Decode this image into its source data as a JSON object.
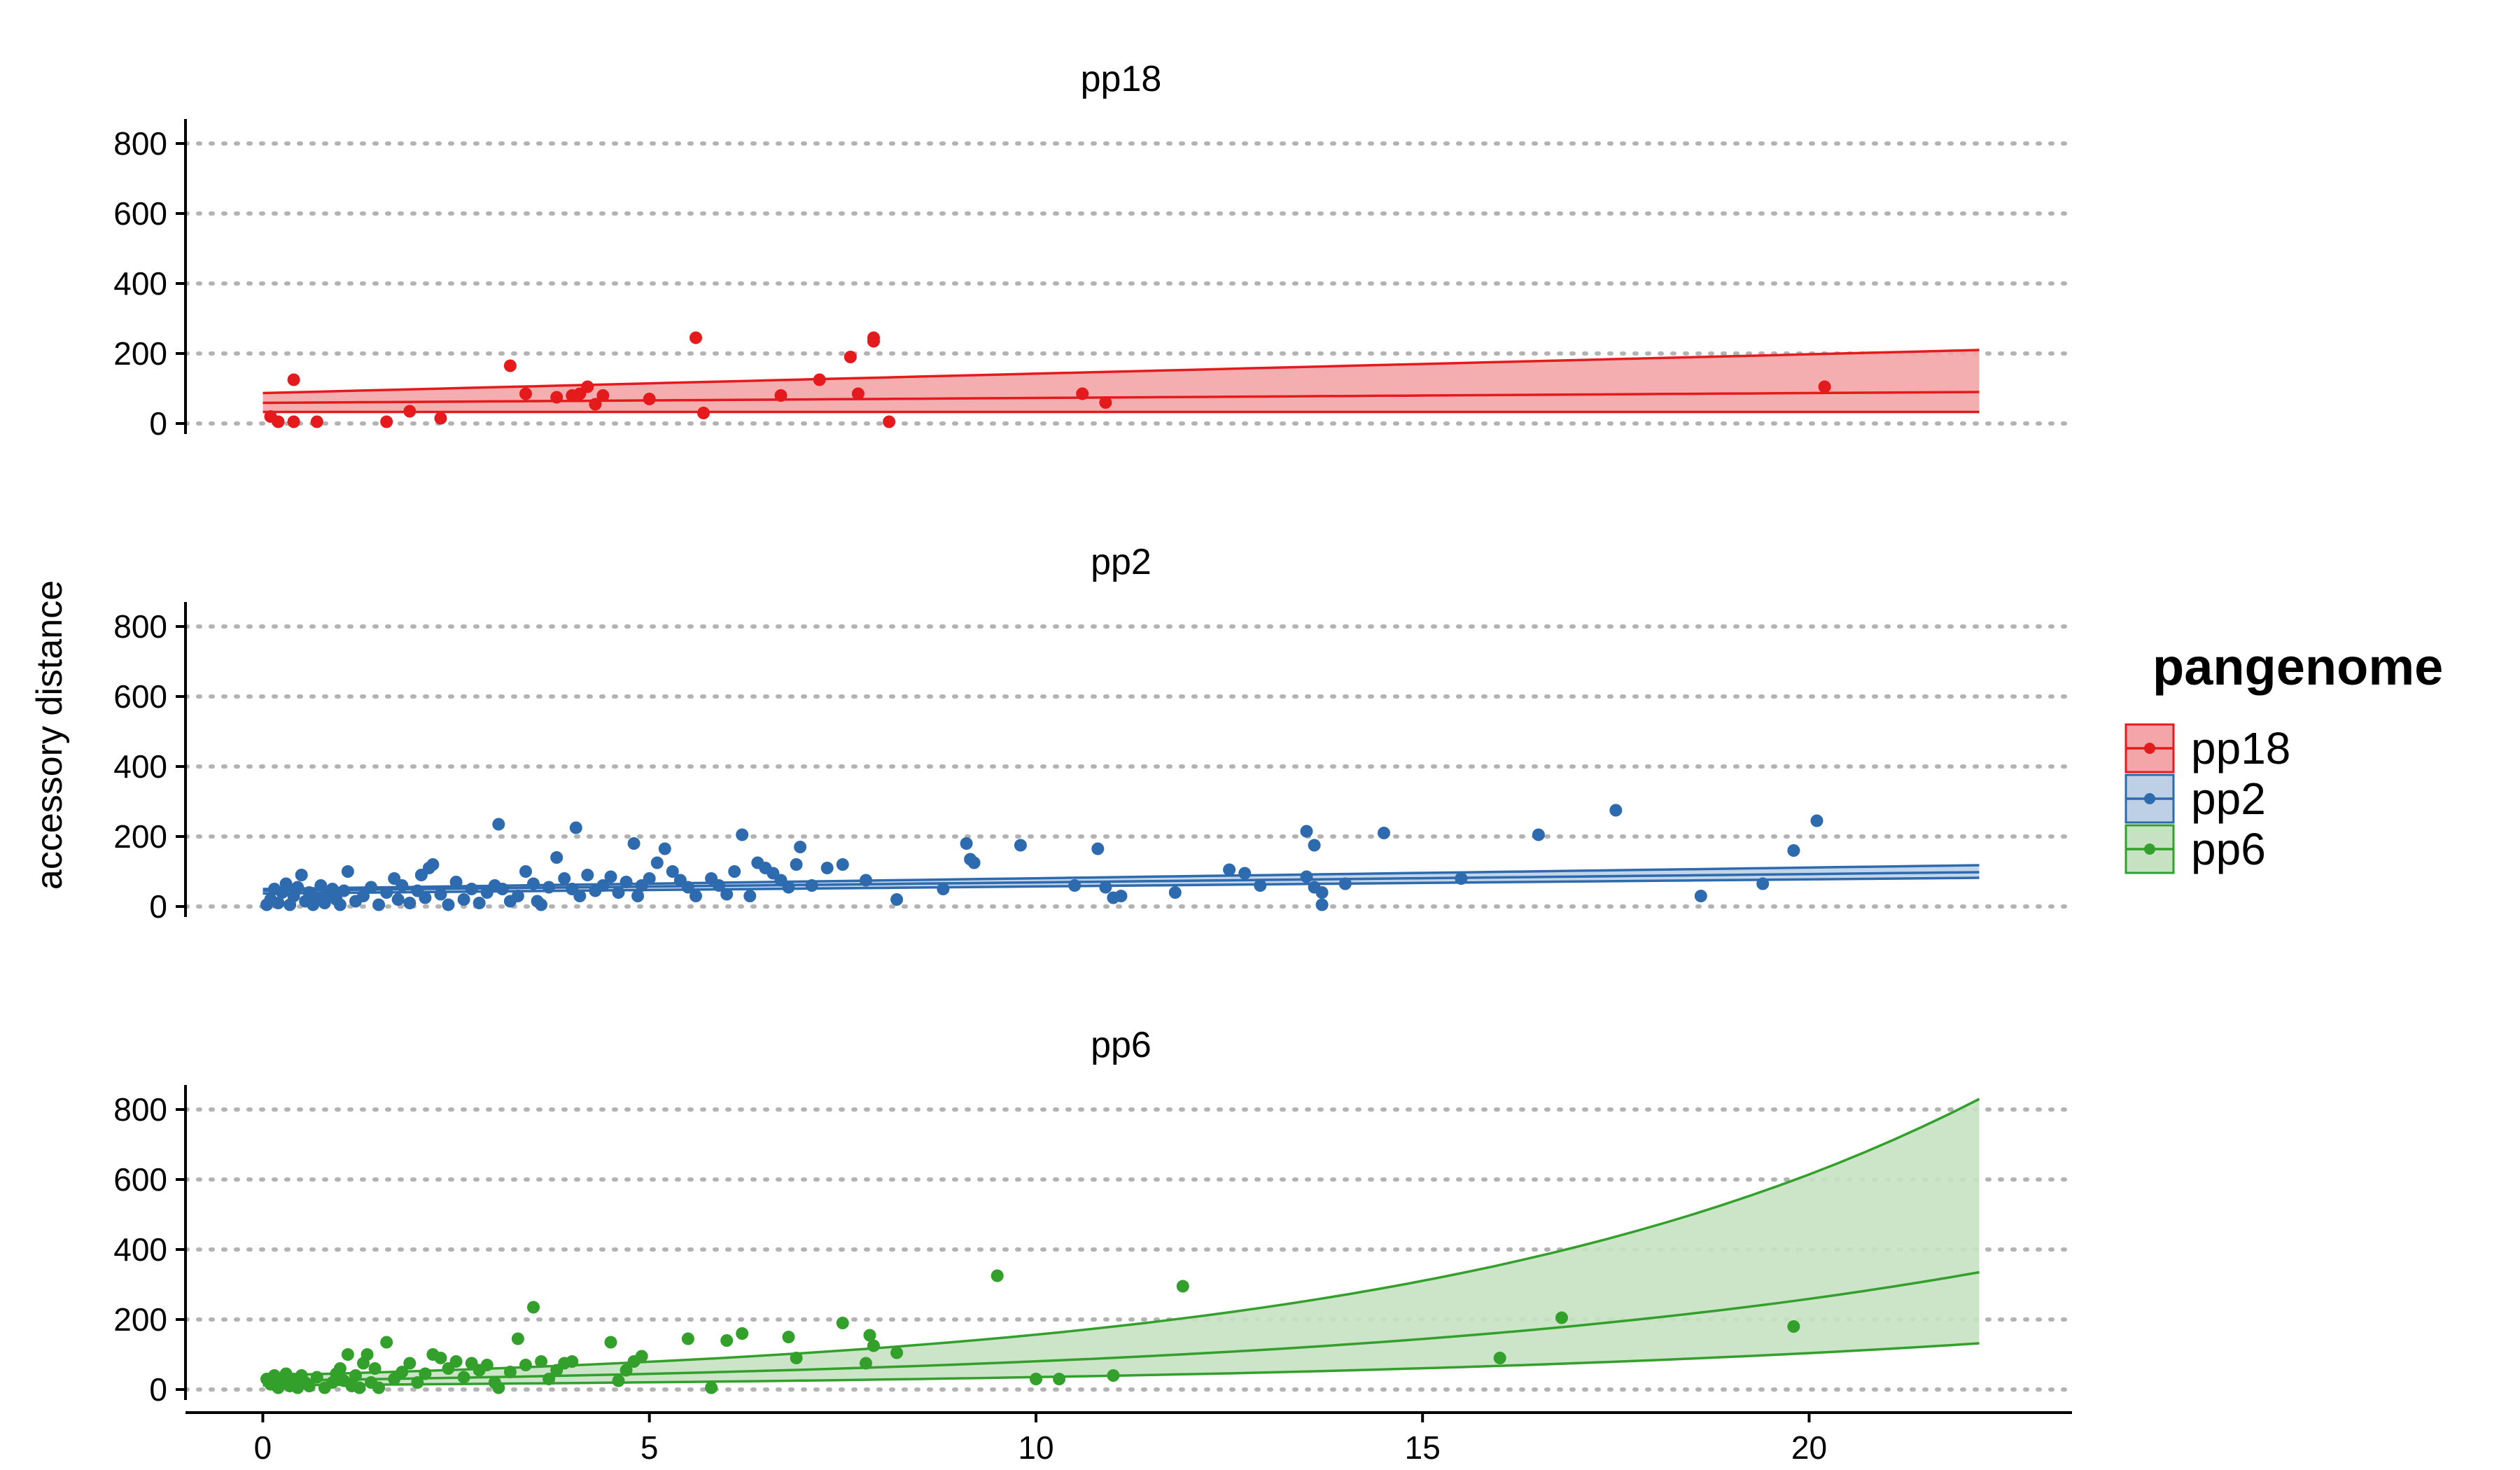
{
  "chart_data": {
    "type": "scatter",
    "title": "",
    "xlabel": "",
    "ylabel": "accessory distance",
    "xlim": [
      -1,
      23.4
    ],
    "x_ticks": [
      0,
      5,
      10,
      15,
      20
    ],
    "y_ticks": [
      0,
      200,
      400,
      600,
      800
    ],
    "ylim": [
      -30,
      870
    ],
    "grid": "horizontal dotted",
    "legend": {
      "title": "pangenome",
      "position": "right"
    },
    "panels": [
      {
        "name": "pp18",
        "color": "#E41A1C",
        "fill": "#F4A5A7",
        "fit": {
          "x": [
            0,
            22.2
          ],
          "mid": [
            59,
            90
          ],
          "lo": [
            33,
            33
          ],
          "hi": [
            87,
            210
          ]
        },
        "points": [
          [
            0.1,
            20
          ],
          [
            0.2,
            5
          ],
          [
            0.4,
            125
          ],
          [
            0.4,
            5
          ],
          [
            0.7,
            5
          ],
          [
            1.6,
            5
          ],
          [
            1.9,
            35
          ],
          [
            2.3,
            15
          ],
          [
            3.2,
            165
          ],
          [
            3.4,
            85
          ],
          [
            3.8,
            75
          ],
          [
            4.0,
            80
          ],
          [
            4.1,
            85
          ],
          [
            4.2,
            105
          ],
          [
            4.3,
            55
          ],
          [
            4.4,
            80
          ],
          [
            5.0,
            70
          ],
          [
            5.6,
            245
          ],
          [
            5.7,
            30
          ],
          [
            6.7,
            80
          ],
          [
            7.2,
            125
          ],
          [
            7.6,
            190
          ],
          [
            7.7,
            85
          ],
          [
            7.9,
            235
          ],
          [
            7.9,
            245
          ],
          [
            8.1,
            5
          ],
          [
            10.6,
            85
          ],
          [
            10.9,
            60
          ],
          [
            20.2,
            105
          ]
        ]
      },
      {
        "name": "pp2",
        "color": "#2E6AAE",
        "fill": "#BDD0E6",
        "fit": {
          "x": [
            0,
            22.2
          ],
          "mid": [
            45,
            98
          ],
          "lo": [
            37,
            82
          ],
          "hi": [
            50,
            118
          ]
        },
        "points": [
          [
            0.05,
            5
          ],
          [
            0.1,
            20
          ],
          [
            0.15,
            50
          ],
          [
            0.2,
            10
          ],
          [
            0.25,
            40
          ],
          [
            0.3,
            65
          ],
          [
            0.35,
            5
          ],
          [
            0.4,
            30
          ],
          [
            0.45,
            55
          ],
          [
            0.5,
            90
          ],
          [
            0.55,
            15
          ],
          [
            0.6,
            40
          ],
          [
            0.65,
            5
          ],
          [
            0.7,
            25
          ],
          [
            0.75,
            60
          ],
          [
            0.8,
            10
          ],
          [
            0.85,
            35
          ],
          [
            0.9,
            50
          ],
          [
            0.95,
            20
          ],
          [
            1.0,
            5
          ],
          [
            1.05,
            45
          ],
          [
            1.1,
            100
          ],
          [
            1.2,
            15
          ],
          [
            1.3,
            30
          ],
          [
            1.4,
            55
          ],
          [
            1.5,
            5
          ],
          [
            1.6,
            40
          ],
          [
            1.7,
            80
          ],
          [
            1.75,
            20
          ],
          [
            1.8,
            60
          ],
          [
            1.9,
            10
          ],
          [
            2.0,
            45
          ],
          [
            2.05,
            90
          ],
          [
            2.1,
            25
          ],
          [
            2.15,
            110
          ],
          [
            2.2,
            120
          ],
          [
            2.3,
            35
          ],
          [
            2.4,
            5
          ],
          [
            2.5,
            70
          ],
          [
            2.6,
            20
          ],
          [
            2.7,
            50
          ],
          [
            2.8,
            10
          ],
          [
            2.9,
            40
          ],
          [
            3.0,
            60
          ],
          [
            3.05,
            235
          ],
          [
            3.1,
            50
          ],
          [
            3.2,
            15
          ],
          [
            3.3,
            30
          ],
          [
            3.4,
            100
          ],
          [
            3.5,
            65
          ],
          [
            3.55,
            15
          ],
          [
            3.6,
            5
          ],
          [
            3.7,
            55
          ],
          [
            3.8,
            140
          ],
          [
            3.9,
            80
          ],
          [
            4.0,
            50
          ],
          [
            4.05,
            225
          ],
          [
            4.1,
            30
          ],
          [
            4.2,
            90
          ],
          [
            4.3,
            45
          ],
          [
            4.4,
            60
          ],
          [
            4.5,
            85
          ],
          [
            4.6,
            40
          ],
          [
            4.7,
            70
          ],
          [
            4.8,
            180
          ],
          [
            4.85,
            30
          ],
          [
            4.9,
            60
          ],
          [
            5.0,
            80
          ],
          [
            5.1,
            125
          ],
          [
            5.2,
            165
          ],
          [
            5.3,
            100
          ],
          [
            5.4,
            75
          ],
          [
            5.5,
            55
          ],
          [
            5.6,
            30
          ],
          [
            5.8,
            80
          ],
          [
            5.9,
            60
          ],
          [
            6.0,
            35
          ],
          [
            6.1,
            100
          ],
          [
            6.2,
            205
          ],
          [
            6.3,
            30
          ],
          [
            6.4,
            125
          ],
          [
            6.5,
            110
          ],
          [
            6.6,
            95
          ],
          [
            6.7,
            75
          ],
          [
            6.8,
            55
          ],
          [
            6.9,
            120
          ],
          [
            6.95,
            170
          ],
          [
            7.1,
            60
          ],
          [
            7.3,
            110
          ],
          [
            7.5,
            120
          ],
          [
            7.8,
            75
          ],
          [
            8.2,
            20
          ],
          [
            8.8,
            50
          ],
          [
            9.1,
            180
          ],
          [
            9.15,
            135
          ],
          [
            9.2,
            125
          ],
          [
            9.8,
            175
          ],
          [
            10.5,
            60
          ],
          [
            10.8,
            165
          ],
          [
            10.9,
            55
          ],
          [
            11.0,
            25
          ],
          [
            11.1,
            30
          ],
          [
            11.8,
            40
          ],
          [
            12.5,
            105
          ],
          [
            12.7,
            95
          ],
          [
            12.9,
            60
          ],
          [
            13.5,
            215
          ],
          [
            13.5,
            85
          ],
          [
            13.6,
            175
          ],
          [
            13.6,
            55
          ],
          [
            13.7,
            40
          ],
          [
            13.7,
            5
          ],
          [
            14.0,
            65
          ],
          [
            14.5,
            210
          ],
          [
            15.5,
            80
          ],
          [
            16.5,
            205
          ],
          [
            17.5,
            275
          ],
          [
            18.6,
            30
          ],
          [
            19.4,
            65
          ],
          [
            19.8,
            160
          ],
          [
            20.1,
            245
          ]
        ]
      },
      {
        "name": "pp6",
        "color": "#33A02C",
        "fill": "#C6E2C3",
        "fit": {
          "x": [
            0,
            22.2
          ],
          "mid": [
            25,
            335
          ],
          "lo": [
            12,
            132
          ],
          "hi": [
            40,
            830
          ],
          "curve": "exponential"
        },
        "points": [
          [
            0.05,
            30
          ],
          [
            0.1,
            15
          ],
          [
            0.15,
            40
          ],
          [
            0.2,
            5
          ],
          [
            0.25,
            25
          ],
          [
            0.3,
            45
          ],
          [
            0.35,
            10
          ],
          [
            0.4,
            30
          ],
          [
            0.45,
            5
          ],
          [
            0.5,
            40
          ],
          [
            0.55,
            20
          ],
          [
            0.6,
            10
          ],
          [
            0.7,
            35
          ],
          [
            0.8,
            5
          ],
          [
            0.9,
            20
          ],
          [
            0.95,
            45
          ],
          [
            1.0,
            60
          ],
          [
            1.05,
            25
          ],
          [
            1.1,
            100
          ],
          [
            1.15,
            10
          ],
          [
            1.2,
            40
          ],
          [
            1.25,
            5
          ],
          [
            1.3,
            75
          ],
          [
            1.35,
            100
          ],
          [
            1.4,
            20
          ],
          [
            1.45,
            60
          ],
          [
            1.5,
            5
          ],
          [
            1.6,
            135
          ],
          [
            1.7,
            30
          ],
          [
            1.8,
            50
          ],
          [
            1.9,
            75
          ],
          [
            2.0,
            20
          ],
          [
            2.1,
            45
          ],
          [
            2.2,
            100
          ],
          [
            2.3,
            90
          ],
          [
            2.4,
            60
          ],
          [
            2.5,
            80
          ],
          [
            2.6,
            35
          ],
          [
            2.7,
            75
          ],
          [
            2.8,
            55
          ],
          [
            2.9,
            70
          ],
          [
            3.0,
            20
          ],
          [
            3.05,
            5
          ],
          [
            3.2,
            50
          ],
          [
            3.3,
            145
          ],
          [
            3.4,
            70
          ],
          [
            3.5,
            235
          ],
          [
            3.6,
            80
          ],
          [
            3.7,
            30
          ],
          [
            3.8,
            55
          ],
          [
            3.9,
            75
          ],
          [
            4.0,
            80
          ],
          [
            4.5,
            135
          ],
          [
            4.6,
            25
          ],
          [
            4.7,
            55
          ],
          [
            4.8,
            80
          ],
          [
            4.9,
            95
          ],
          [
            5.5,
            145
          ],
          [
            5.8,
            5
          ],
          [
            6.0,
            140
          ],
          [
            6.2,
            160
          ],
          [
            6.8,
            150
          ],
          [
            6.9,
            90
          ],
          [
            7.5,
            190
          ],
          [
            7.8,
            75
          ],
          [
            7.85,
            155
          ],
          [
            7.9,
            125
          ],
          [
            8.2,
            105
          ],
          [
            9.5,
            325
          ],
          [
            10.0,
            30
          ],
          [
            10.3,
            30
          ],
          [
            11.0,
            40
          ],
          [
            11.9,
            295
          ],
          [
            16.0,
            90
          ],
          [
            16.8,
            205
          ],
          [
            19.8,
            180
          ]
        ]
      }
    ]
  }
}
